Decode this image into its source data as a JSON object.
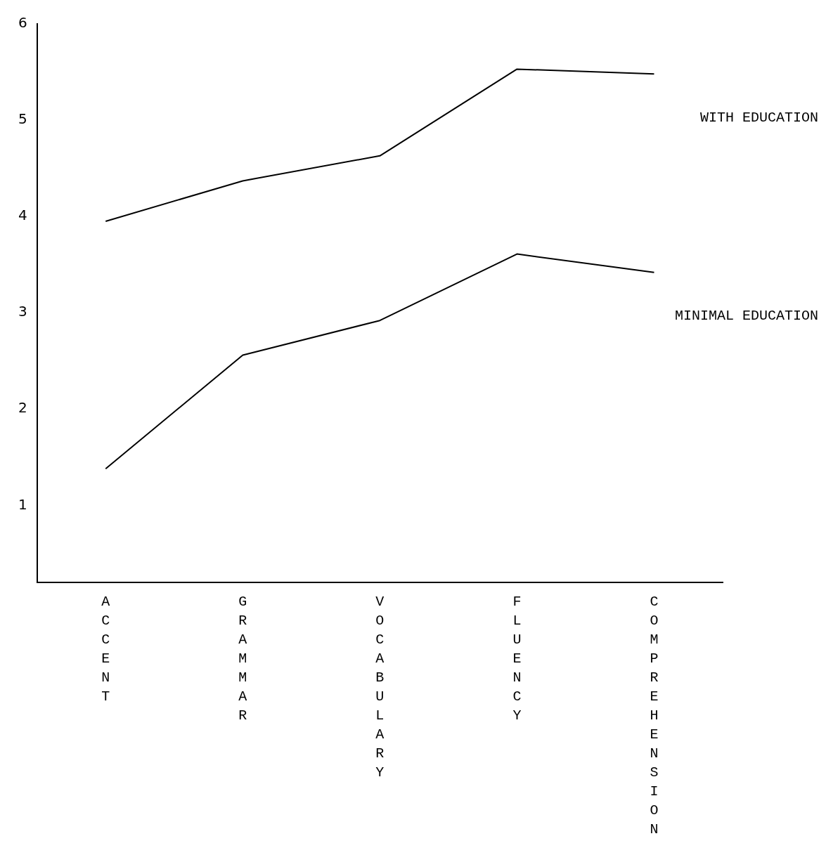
{
  "chart_data": {
    "type": "line",
    "categories": [
      "ACCENT",
      "GRAMMAR",
      "VOCABULARY",
      "FLUENCY",
      "COMPREHENSION"
    ],
    "series": [
      {
        "name": "WITH EDUCATION",
        "color": "#000000",
        "values": [
          3.95,
          4.37,
          4.63,
          5.53,
          5.48
        ]
      },
      {
        "name": "MINIMAL EDUCATION",
        "color": "#000000",
        "values": [
          1.38,
          2.56,
          2.92,
          3.61,
          3.42
        ]
      }
    ],
    "ylim": [
      0.2,
      6
    ],
    "yticks": [
      1,
      2,
      3,
      4,
      5,
      6
    ],
    "grid": false,
    "legend": false,
    "marker": "none",
    "line_style": "solid"
  }
}
